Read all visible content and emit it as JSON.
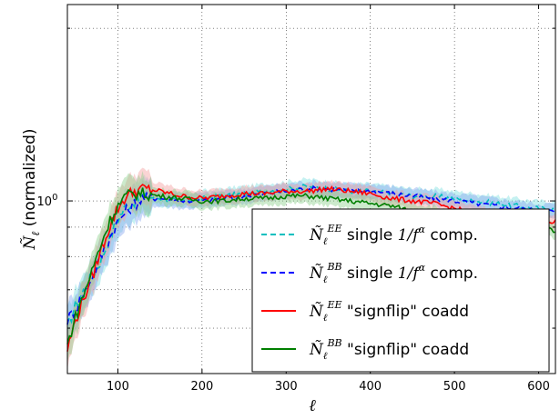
{
  "chart_data": {
    "type": "line",
    "title": "",
    "xlabel": "ℓ",
    "ylabel": "(normalized)",
    "ylabel_symbol": "Ñ",
    "ylabel_subscript": "ℓ",
    "xlim": [
      40,
      620
    ],
    "ylim_log": [
      0.5,
      2.2
    ],
    "yscale": "log",
    "grid": true,
    "grid_style": "dotted",
    "legend_position": "lower-right",
    "x_ticks": [
      100,
      200,
      300,
      400,
      500,
      600
    ],
    "x_tick_labels": [
      "100",
      "200",
      "300",
      "400",
      "500",
      "600"
    ],
    "y_major_tick": 1,
    "y_major_tick_label": "10",
    "y_major_tick_exponent": "0",
    "y_minor_ticks": [
      0.6,
      0.7,
      0.8,
      0.9,
      2.0
    ],
    "series": [
      {
        "name": "Ñ_ℓ^EE single 1/f^α comp.",
        "legend_prefix": "Ñ",
        "legend_sub": "ℓ",
        "legend_sup": "EE",
        "legend_suffix_a": " single ",
        "legend_math": "1/f",
        "legend_math_sup": "α",
        "legend_suffix_b": " comp.",
        "color": "#00bfbf",
        "band_color": "#7fe0e0",
        "style": "dashed",
        "x": [
          40,
          50,
          60,
          70,
          80,
          90,
          100,
          110,
          120,
          130,
          150,
          175,
          200,
          225,
          250,
          275,
          300,
          325,
          350,
          375,
          400,
          425,
          450,
          475,
          500,
          525,
          550,
          575,
          600,
          620
        ],
        "y": [
          0.6,
          0.66,
          0.7,
          0.74,
          0.79,
          0.86,
          0.93,
          0.98,
          1.0,
          1.02,
          1.01,
          1.0,
          1.01,
          1.02,
          1.03,
          1.04,
          1.05,
          1.06,
          1.05,
          1.04,
          1.04,
          1.03,
          1.02,
          1.02,
          1.01,
          1.0,
          0.99,
          0.98,
          0.97,
          0.97
        ]
      },
      {
        "name": "Ñ_ℓ^BB single 1/f^α comp.",
        "legend_prefix": "Ñ",
        "legend_sub": "ℓ",
        "legend_sup": "BB",
        "legend_suffix_a": " single ",
        "legend_math": "1/f",
        "legend_math_sup": "α",
        "legend_suffix_b": " comp.",
        "color": "#0000ff",
        "band_color": "#8aa8f0",
        "style": "dashed",
        "x": [
          40,
          50,
          60,
          70,
          80,
          90,
          100,
          110,
          120,
          130,
          150,
          175,
          200,
          225,
          250,
          275,
          300,
          325,
          350,
          375,
          400,
          425,
          450,
          475,
          500,
          525,
          550,
          575,
          600,
          620
        ],
        "y": [
          0.62,
          0.65,
          0.69,
          0.74,
          0.8,
          0.86,
          0.92,
          0.96,
          0.99,
          1.01,
          1.01,
          1.0,
          1.0,
          1.01,
          1.02,
          1.03,
          1.04,
          1.05,
          1.05,
          1.04,
          1.04,
          1.03,
          1.02,
          1.01,
          1.0,
          0.99,
          0.98,
          0.97,
          0.96,
          0.96
        ]
      },
      {
        "name": "Ñ_ℓ^EE \"signflip\" coadd",
        "legend_prefix": "Ñ",
        "legend_sub": "ℓ",
        "legend_sup": "EE",
        "legend_suffix_a": " \"signflip\" coadd",
        "color": "#ff0000",
        "band_color": "#f5a0a0",
        "style": "solid",
        "x": [
          40,
          50,
          60,
          70,
          80,
          90,
          100,
          110,
          120,
          130,
          150,
          175,
          200,
          225,
          250,
          275,
          300,
          325,
          350,
          375,
          400,
          425,
          450,
          475,
          500,
          525,
          550,
          575,
          600,
          620
        ],
        "y": [
          0.55,
          0.62,
          0.68,
          0.74,
          0.82,
          0.9,
          0.97,
          1.02,
          1.04,
          1.05,
          1.04,
          1.02,
          1.01,
          1.02,
          1.03,
          1.03,
          1.04,
          1.04,
          1.05,
          1.04,
          1.03,
          1.01,
          1.0,
          0.99,
          0.97,
          0.95,
          0.94,
          0.93,
          0.92,
          0.92
        ]
      },
      {
        "name": "Ñ_ℓ^BB \"signflip\" coadd",
        "legend_prefix": "Ñ",
        "legend_sub": "ℓ",
        "legend_sup": "BB",
        "legend_suffix_a": " \"signflip\" coadd",
        "color": "#007f00",
        "band_color": "#8fd08f",
        "style": "solid",
        "x": [
          40,
          50,
          60,
          70,
          80,
          90,
          100,
          110,
          120,
          130,
          150,
          175,
          200,
          225,
          250,
          275,
          300,
          325,
          350,
          375,
          400,
          425,
          450,
          475,
          500,
          525,
          550,
          575,
          600,
          620
        ],
        "y": [
          0.56,
          0.63,
          0.69,
          0.76,
          0.84,
          0.92,
          0.98,
          1.02,
          1.03,
          1.03,
          1.02,
          1.01,
          1.0,
          1.0,
          1.01,
          1.01,
          1.02,
          1.02,
          1.01,
          1.0,
          0.99,
          0.98,
          0.96,
          0.95,
          0.93,
          0.92,
          0.91,
          0.9,
          0.89,
          0.89
        ]
      }
    ]
  }
}
